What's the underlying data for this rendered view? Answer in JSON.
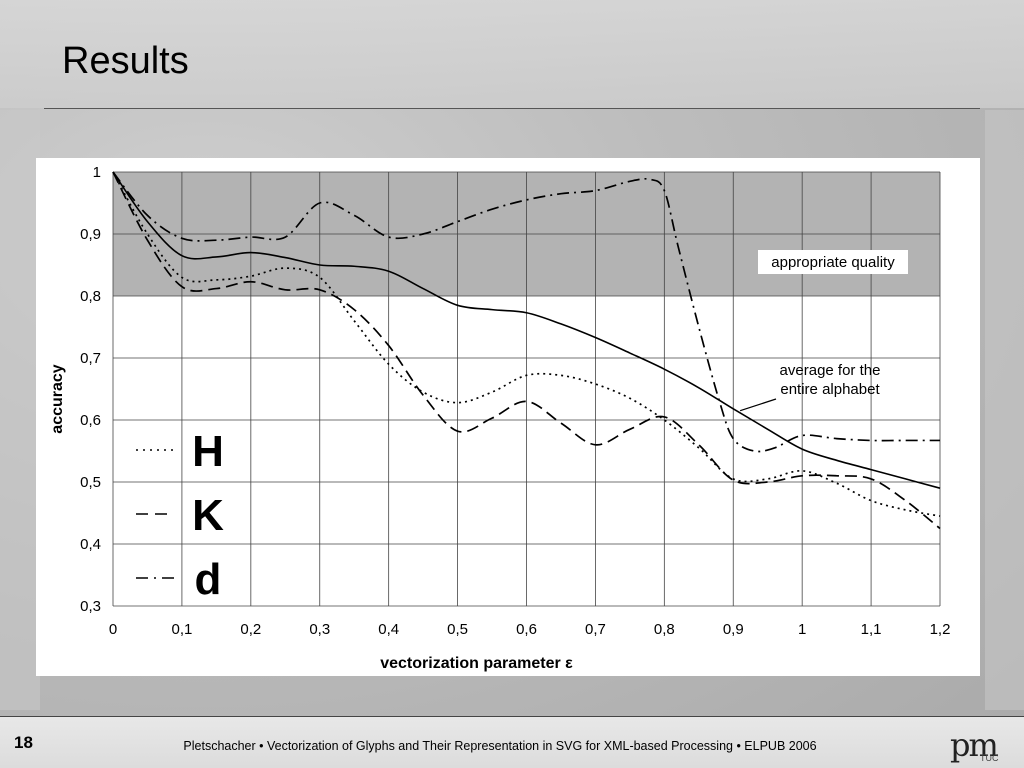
{
  "slide": {
    "title": "Results",
    "page_number": "18",
    "credit": "Pletschacher • Vectorization of Glyphs and Their Representation in SVG for XML-based Processing • ELPUB 2006",
    "logo_text": "pm",
    "logo_subtext": "TUC"
  },
  "chart_data": {
    "type": "line",
    "xlabel": "vectorization parameter ε",
    "ylabel": "accuracy",
    "xlim": [
      0,
      1.2
    ],
    "ylim": [
      0.3,
      1
    ],
    "x_ticks": [
      "0",
      "0,1",
      "0,2",
      "0,3",
      "0,4",
      "0,5",
      "0,6",
      "0,7",
      "0,8",
      "0,9",
      "1",
      "1,1",
      "1,2"
    ],
    "y_ticks": [
      "0,3",
      "0,4",
      "0,5",
      "0,6",
      "0,7",
      "0,8",
      "0,9",
      "1"
    ],
    "grid": true,
    "shaded_region": {
      "y_from": 0.8,
      "y_to": 1.0,
      "label": "appropriate quality"
    },
    "annotation": {
      "text": [
        "average for the",
        "entire alphabet"
      ]
    },
    "legend": {
      "placement": "bottom-left",
      "entries": [
        "H",
        "K",
        "d"
      ]
    },
    "series": [
      {
        "name": "average for the entire alphabet",
        "style": "solid",
        "x": [
          0,
          0.05,
          0.1,
          0.15,
          0.2,
          0.25,
          0.3,
          0.35,
          0.4,
          0.45,
          0.5,
          0.55,
          0.6,
          0.65,
          0.7,
          0.75,
          0.8,
          0.85,
          0.9,
          0.95,
          1.0,
          1.05,
          1.1,
          1.15,
          1.2
        ],
        "y": [
          1.0,
          0.92,
          0.865,
          0.863,
          0.87,
          0.862,
          0.85,
          0.848,
          0.84,
          0.812,
          0.785,
          0.778,
          0.773,
          0.755,
          0.733,
          0.708,
          0.682,
          0.652,
          0.618,
          0.585,
          0.553,
          0.535,
          0.52,
          0.505,
          0.49
        ]
      },
      {
        "name": "H",
        "style": "dotted",
        "x": [
          0,
          0.05,
          0.1,
          0.15,
          0.2,
          0.25,
          0.3,
          0.35,
          0.4,
          0.45,
          0.5,
          0.55,
          0.6,
          0.65,
          0.7,
          0.75,
          0.8,
          0.85,
          0.9,
          0.95,
          1.0,
          1.05,
          1.1,
          1.15,
          1.2
        ],
        "y": [
          1.0,
          0.9,
          0.83,
          0.826,
          0.832,
          0.845,
          0.83,
          0.76,
          0.69,
          0.645,
          0.628,
          0.645,
          0.672,
          0.672,
          0.658,
          0.635,
          0.6,
          0.555,
          0.505,
          0.505,
          0.518,
          0.498,
          0.47,
          0.455,
          0.445
        ]
      },
      {
        "name": "K",
        "style": "dashed",
        "x": [
          0,
          0.05,
          0.1,
          0.15,
          0.2,
          0.25,
          0.3,
          0.35,
          0.4,
          0.45,
          0.5,
          0.55,
          0.6,
          0.65,
          0.7,
          0.75,
          0.8,
          0.85,
          0.9,
          0.95,
          1.0,
          1.05,
          1.1,
          1.15,
          1.2
        ],
        "y": [
          1.0,
          0.89,
          0.815,
          0.812,
          0.823,
          0.81,
          0.81,
          0.778,
          0.72,
          0.64,
          0.582,
          0.603,
          0.63,
          0.595,
          0.56,
          0.585,
          0.605,
          0.56,
          0.503,
          0.5,
          0.51,
          0.51,
          0.505,
          0.47,
          0.425
        ]
      },
      {
        "name": "d",
        "style": "dash-dot",
        "x": [
          0,
          0.05,
          0.1,
          0.15,
          0.2,
          0.25,
          0.3,
          0.35,
          0.4,
          0.45,
          0.5,
          0.55,
          0.6,
          0.65,
          0.7,
          0.75,
          0.78,
          0.8,
          0.82,
          0.85,
          0.88,
          0.9,
          0.93,
          0.96,
          1.0,
          1.05,
          1.1,
          1.15,
          1.2
        ],
        "y": [
          1.0,
          0.93,
          0.893,
          0.89,
          0.895,
          0.895,
          0.95,
          0.93,
          0.895,
          0.9,
          0.92,
          0.94,
          0.955,
          0.965,
          0.97,
          0.985,
          0.988,
          0.97,
          0.88,
          0.75,
          0.63,
          0.57,
          0.55,
          0.555,
          0.575,
          0.57,
          0.567,
          0.567,
          0.567
        ]
      }
    ]
  }
}
